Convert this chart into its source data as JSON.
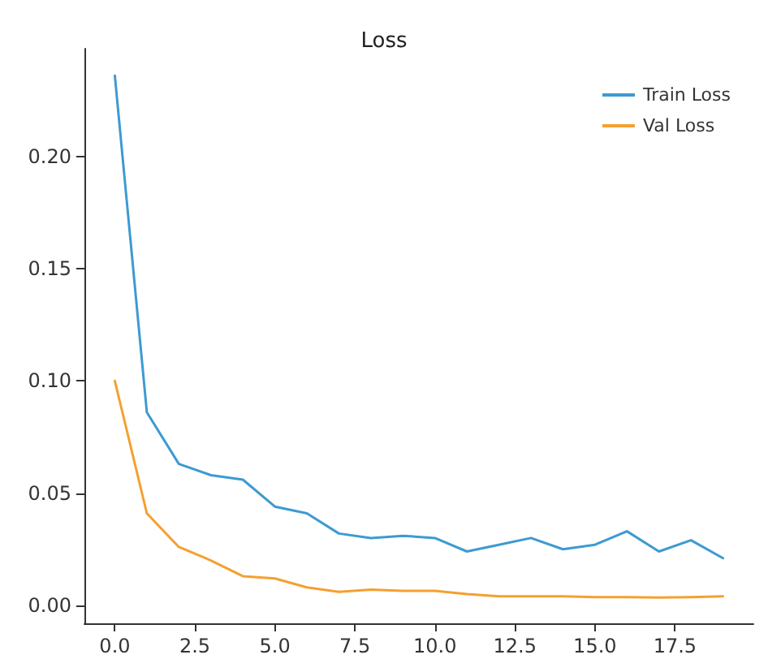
{
  "chart_data": {
    "type": "line",
    "title": "Loss",
    "x": [
      0,
      1,
      2,
      3,
      4,
      5,
      6,
      7,
      8,
      9,
      10,
      11,
      12,
      13,
      14,
      15,
      16,
      17,
      18,
      19
    ],
    "series": [
      {
        "name": "Train Loss",
        "color": "#3d9ad1",
        "values": [
          0.236,
          0.086,
          0.063,
          0.058,
          0.056,
          0.044,
          0.041,
          0.032,
          0.03,
          0.031,
          0.03,
          0.024,
          0.027,
          0.03,
          0.025,
          0.027,
          0.033,
          0.024,
          0.029,
          0.021
        ]
      },
      {
        "name": "Val Loss",
        "color": "#f5a030",
        "values": [
          0.1,
          0.041,
          0.026,
          0.02,
          0.013,
          0.012,
          0.008,
          0.006,
          0.007,
          0.0065,
          0.0065,
          0.005,
          0.004,
          0.004,
          0.004,
          0.0037,
          0.0037,
          0.0035,
          0.0037,
          0.004
        ]
      }
    ],
    "xlim": [
      -0.95,
      19.95
    ],
    "xticks": [
      {
        "value": 0,
        "label": "0.0"
      },
      {
        "value": 2.5,
        "label": "2.5"
      },
      {
        "value": 5,
        "label": "5.0"
      },
      {
        "value": 7.5,
        "label": "7.5"
      },
      {
        "value": 10,
        "label": "10.0"
      },
      {
        "value": 12.5,
        "label": "12.5"
      },
      {
        "value": 15,
        "label": "15.0"
      },
      {
        "value": 17.5,
        "label": "17.5"
      }
    ],
    "ylim": [
      -0.008,
      0.248
    ],
    "yticks": [
      {
        "value": 0,
        "label": "0.00"
      },
      {
        "value": 0.05,
        "label": "0.05"
      },
      {
        "value": 0.1,
        "label": "0.10"
      },
      {
        "value": 0.15,
        "label": "0.15"
      },
      {
        "value": 0.2,
        "label": "0.20"
      }
    ],
    "legend": "top right",
    "grid": false,
    "marker": "none",
    "line_style": "solid"
  }
}
